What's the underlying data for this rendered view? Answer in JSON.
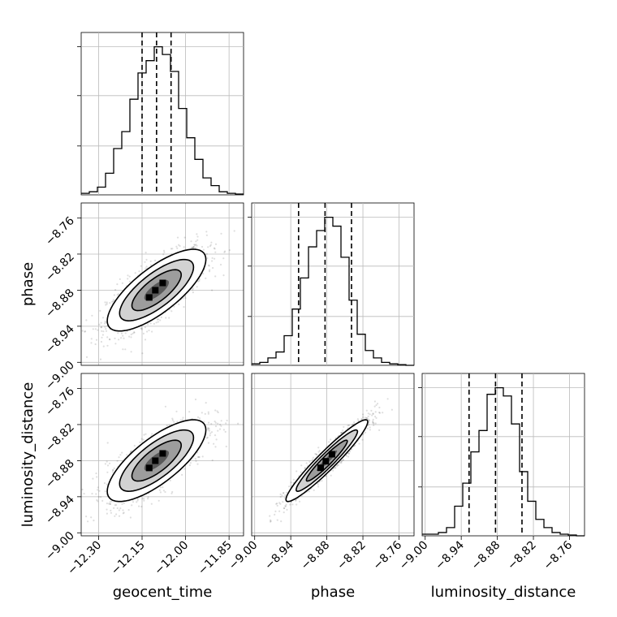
{
  "chart_data": {
    "type": "corner",
    "parameters": [
      "geocent_time",
      "phase",
      "luminosity_distance"
    ],
    "axes": {
      "geocent_time": {
        "label": "geocent_time",
        "range": [
          -12.36,
          -11.8
        ],
        "ticks": [
          -12.3,
          -12.15,
          -12.0,
          -11.85
        ],
        "tick_labels": [
          "−12.30",
          "−12.15",
          "−12.00",
          "−11.85"
        ]
      },
      "phase": {
        "label": "phase",
        "range": [
          -9.005,
          -8.735
        ],
        "ticks": [
          -9.0,
          -8.94,
          -8.88,
          -8.82,
          -8.76
        ],
        "tick_labels": [
          "−9.00",
          "−8.94",
          "−8.88",
          "−8.82",
          "−8.76"
        ]
      },
      "luminosity_distance": {
        "label": "luminosity_distance",
        "range": [
          -9.005,
          -8.735
        ],
        "ticks": [
          -9.0,
          -8.94,
          -8.88,
          -8.82,
          -8.76
        ],
        "tick_labels": [
          "−9.00",
          "−8.94",
          "−8.88",
          "−8.82",
          "−8.76"
        ]
      }
    },
    "histograms": [
      {
        "param": "geocent_time",
        "bin_edges": [
          -12.36,
          -12.332,
          -12.304,
          -12.276,
          -12.248,
          -12.22,
          -12.192,
          -12.164,
          -12.136,
          -12.108,
          -12.08,
          -12.052,
          -12.024,
          -11.996,
          -11.968,
          -11.94,
          -11.912,
          -11.884,
          -11.856,
          -11.828,
          -11.8
        ],
        "counts": [
          0.01,
          0.02,
          0.05,
          0.14,
          0.3,
          0.41,
          0.62,
          0.79,
          0.87,
          0.96,
          0.91,
          0.8,
          0.56,
          0.37,
          0.23,
          0.11,
          0.06,
          0.02,
          0.01,
          0.005
        ],
        "quantiles": [
          -12.15,
          -12.1,
          -12.05
        ]
      },
      {
        "param": "phase",
        "bin_edges": [
          -9.005,
          -8.9915,
          -8.978,
          -8.9645,
          -8.951,
          -8.9375,
          -8.924,
          -8.9105,
          -8.897,
          -8.8835,
          -8.87,
          -8.8565,
          -8.843,
          -8.8295,
          -8.816,
          -8.8025,
          -8.789,
          -8.7755,
          -8.762,
          -8.7485,
          -8.735
        ],
        "counts": [
          0.01,
          0.02,
          0.05,
          0.09,
          0.2,
          0.38,
          0.59,
          0.8,
          0.91,
          1.0,
          0.94,
          0.73,
          0.44,
          0.21,
          0.1,
          0.05,
          0.02,
          0.01,
          0.005,
          0.0
        ],
        "quantiles": [
          -8.927,
          -8.883,
          -8.839
        ]
      },
      {
        "param": "luminosity_distance",
        "bin_edges": [
          -9.005,
          -8.9915,
          -8.978,
          -8.9645,
          -8.951,
          -8.9375,
          -8.924,
          -8.9105,
          -8.897,
          -8.8835,
          -8.87,
          -8.8565,
          -8.843,
          -8.8295,
          -8.816,
          -8.8025,
          -8.789,
          -8.7755,
          -8.762,
          -8.7485,
          -8.735
        ],
        "counts": [
          0.01,
          0.01,
          0.02,
          0.05,
          0.18,
          0.32,
          0.51,
          0.64,
          0.86,
          0.9,
          0.85,
          0.68,
          0.39,
          0.21,
          0.1,
          0.05,
          0.02,
          0.01,
          0.005,
          0.0
        ],
        "quantiles": [
          -8.927,
          -8.883,
          -8.839
        ]
      }
    ],
    "scatter_2d": [
      {
        "x": "geocent_time",
        "y": "phase",
        "mean": [
          -12.1,
          -8.88
        ],
        "std": [
          0.085,
          0.034
        ],
        "correlation": 0.75
      },
      {
        "x": "geocent_time",
        "y": "luminosity_distance",
        "mean": [
          -12.1,
          -8.88
        ],
        "std": [
          0.085,
          0.034
        ],
        "correlation": 0.75
      },
      {
        "x": "phase",
        "y": "luminosity_distance",
        "mean": [
          -8.88,
          -8.88
        ],
        "std": [
          0.034,
          0.034
        ],
        "correlation": 0.95
      }
    ],
    "contour_levels_sigma": [
      0.5,
      1.0,
      1.5,
      2.0
    ],
    "grid": true
  }
}
